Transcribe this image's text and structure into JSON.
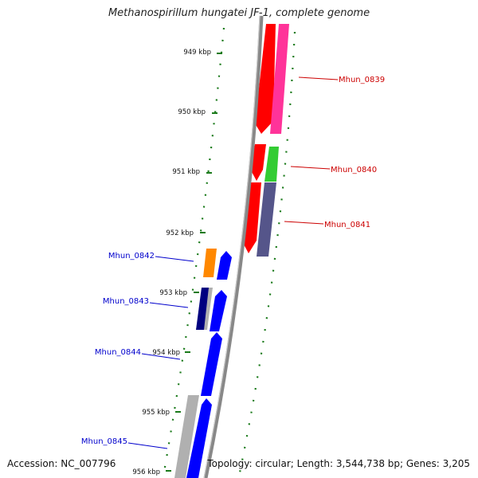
{
  "title": "Methanospirillum hungatei JF-1, complete genome",
  "footer": {
    "accession": "Accession: NC_007796",
    "summary": "Topology: circular; Length: 3,544,738 bp; Genes: 3,205"
  },
  "ticks": [
    {
      "label": "949 kbp"
    },
    {
      "label": "950 kbp"
    },
    {
      "label": "951 kbp"
    },
    {
      "label": "952 kbp"
    },
    {
      "label": "953 kbp"
    },
    {
      "label": "954 kbp"
    },
    {
      "label": "955 kbp"
    },
    {
      "label": "956 kbp"
    }
  ],
  "gene_labels": {
    "forward": [
      "Mhun_0839",
      "Mhun_0840",
      "Mhun_0841"
    ],
    "reverse": [
      "Mhun_0842",
      "Mhun_0843",
      "Mhun_0844",
      "Mhun_0845"
    ]
  },
  "colors": {
    "forward_label": "#cc0000",
    "reverse_label": "#0000cc",
    "cds_forward": "#ff0000",
    "cds_reverse": "#0000ff",
    "magenta": "#ff3399",
    "green": "#33cc33",
    "slate": "#55558a",
    "orange": "#ff8800",
    "navy": "#000080",
    "grey": "#b0b0b0",
    "backbone": "#888888",
    "ticks": "#1a7a1a"
  }
}
